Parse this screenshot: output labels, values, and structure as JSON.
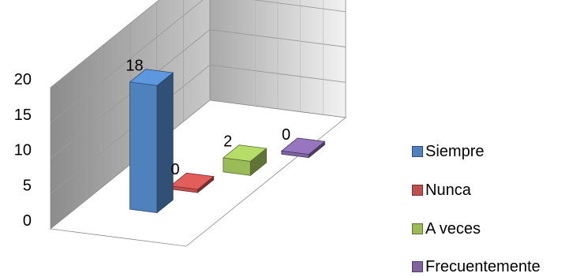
{
  "chart_data": {
    "type": "bar",
    "style": "3d-column",
    "categories": [
      "Siempre",
      "Nunca",
      "A veces",
      "Frecuentemente"
    ],
    "values": [
      18,
      0,
      2,
      0
    ],
    "ylim": [
      0,
      20
    ],
    "yticks": [
      "0",
      "5",
      "10",
      "15",
      "20"
    ],
    "data_labels": [
      "18",
      "0",
      "2",
      "0"
    ],
    "colors": [
      "#4F81BD",
      "#C0504D",
      "#9BBB59",
      "#8064A2"
    ],
    "legend": {
      "position": "right",
      "entries": [
        "Siempre",
        "Nunca",
        "A veces",
        "Frecuentemente"
      ]
    },
    "grid": true,
    "title": "",
    "xlabel": "",
    "ylabel": ""
  }
}
